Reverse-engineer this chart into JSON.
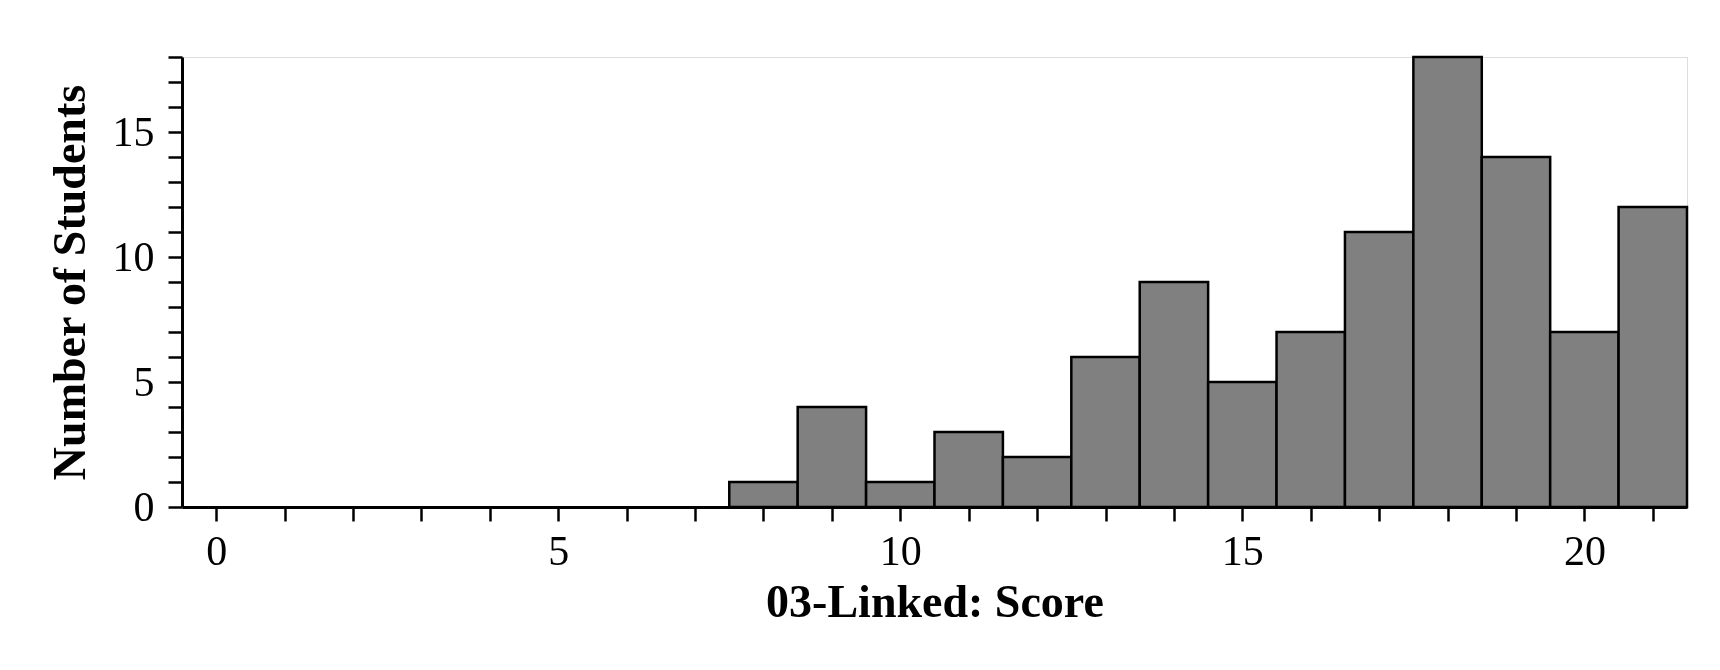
{
  "chart_data": {
    "type": "histogram",
    "xlabel": "03-Linked: Score",
    "ylabel": "Number of Students",
    "bins": [
      7.5,
      8.5,
      9.5,
      10.5,
      11.5,
      12.5,
      13.5,
      14.5,
      15.5,
      16.5,
      17.5,
      18.5,
      19.5,
      20.5,
      21.5
    ],
    "values": [
      1,
      4,
      1,
      3,
      2,
      6,
      9,
      5,
      7,
      11,
      18,
      14,
      7,
      12
    ],
    "color": "#808080",
    "xlim": [
      -0.5,
      21.5
    ],
    "ylim": [
      0,
      18
    ],
    "xticks": [
      0,
      {
        "value": 1,
        "label": null
      },
      {
        "value": 2,
        "label": null
      },
      {
        "value": 3,
        "label": null
      },
      {
        "value": 4,
        "label": null
      },
      5,
      {
        "value": 6,
        "label": null
      },
      {
        "value": 7,
        "label": null
      },
      {
        "value": 8,
        "label": null
      },
      {
        "value": 9,
        "label": null
      },
      10,
      {
        "value": 11,
        "label": null
      },
      {
        "value": 12,
        "label": null
      },
      {
        "value": 13,
        "label": null
      },
      {
        "value": 14,
        "label": null
      },
      15,
      {
        "value": 16,
        "label": null
      },
      {
        "value": 17,
        "label": null
      },
      {
        "value": 18,
        "label": null
      },
      {
        "value": 19,
        "label": null
      },
      20,
      {
        "value": 21,
        "label": null
      }
    ],
    "yticks": [
      0,
      {
        "value": 1,
        "label": null
      },
      {
        "value": 2,
        "label": null
      },
      {
        "value": 3,
        "label": null
      },
      {
        "value": 4,
        "label": null
      },
      5,
      {
        "value": 6,
        "label": null
      },
      {
        "value": 7,
        "label": null
      },
      {
        "value": 8,
        "label": null
      },
      {
        "value": 9,
        "label": null
      },
      10,
      {
        "value": 11,
        "label": null
      },
      {
        "value": 12,
        "label": null
      },
      {
        "value": 13,
        "label": null
      },
      {
        "value": 14,
        "label": null
      },
      15,
      {
        "value": 16,
        "label": null
      },
      {
        "value": 17,
        "label": null
      },
      {
        "value": 18,
        "label": null
      }
    ],
    "grid": false
  }
}
